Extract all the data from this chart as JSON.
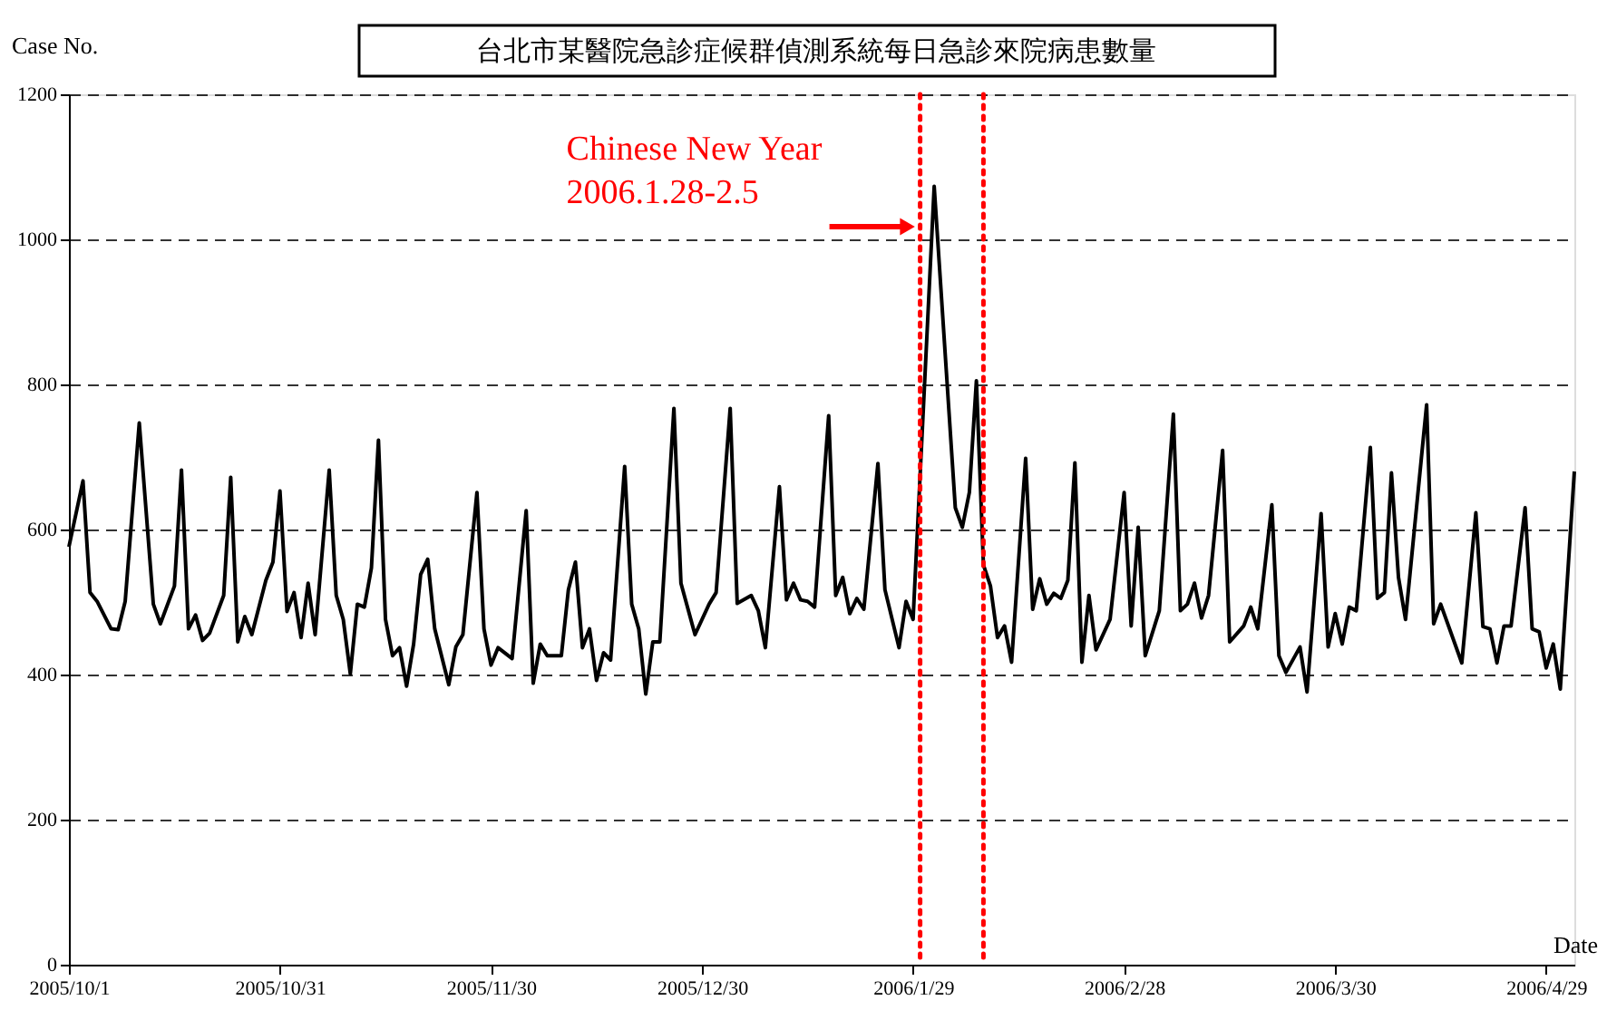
{
  "chart_data": {
    "type": "line",
    "title": "台北市某醫院急診症候群偵測系統每日急診來院病患數量",
    "xlabel": "Date",
    "ylabel": "Case No.",
    "xlim": [
      "2005-10-01",
      "2006-05-03"
    ],
    "xticks": [
      {
        "value": "2005-10-01",
        "label": "2005/10/1"
      },
      {
        "value": "2005-10-31",
        "label": "2005/10/31"
      },
      {
        "value": "2005-11-30",
        "label": "2005/11/30"
      },
      {
        "value": "2005-12-30",
        "label": "2005/12/30"
      },
      {
        "value": "2006-01-29",
        "label": "2006/1/29"
      },
      {
        "value": "2006-02-28",
        "label": "2006/2/28"
      },
      {
        "value": "2006-03-30",
        "label": "2006/3/30"
      },
      {
        "value": "2006-04-29",
        "label": "2006/4/29"
      }
    ],
    "ylim": [
      0,
      1200
    ],
    "yticks": [
      0,
      200,
      400,
      600,
      800,
      1000,
      1200
    ],
    "grid": "y",
    "line_style": "solid",
    "ref_lines": [
      {
        "axis": "x",
        "value": "2006-01-30",
        "color": "#ff0000",
        "line_style": "dotted"
      },
      {
        "axis": "x",
        "value": "2006-02-08",
        "color": "#ff0000",
        "line_style": "dotted"
      }
    ],
    "annotations": [
      "Chinese New Year\n2006.1.28-2.5"
    ],
    "series": [
      {
        "color": "#000000",
        "x": [
          "2005-10-01",
          "2005-10-03",
          "2005-10-04",
          "2005-10-05",
          "2005-10-07",
          "2005-10-08",
          "2005-10-09",
          "2005-10-11",
          "2005-10-13",
          "2005-10-14",
          "2005-10-16",
          "2005-10-17",
          "2005-10-18",
          "2005-10-19",
          "2005-10-20",
          "2005-10-21",
          "2005-10-23",
          "2005-10-24",
          "2005-10-25",
          "2005-10-26",
          "2005-10-27",
          "2005-10-29",
          "2005-10-30",
          "2005-10-31",
          "2005-11-01",
          "2005-11-02",
          "2005-11-03",
          "2005-11-04",
          "2005-11-05",
          "2005-11-07",
          "2005-11-08",
          "2005-11-09",
          "2005-11-10",
          "2005-11-11",
          "2005-11-12",
          "2005-11-13",
          "2005-11-14",
          "2005-11-15",
          "2005-11-16",
          "2005-11-17",
          "2005-11-18",
          "2005-11-19",
          "2005-11-20",
          "2005-11-21",
          "2005-11-22",
          "2005-11-24",
          "2005-11-25",
          "2005-11-26",
          "2005-11-28",
          "2005-11-29",
          "2005-11-30",
          "2005-12-01",
          "2005-12-03",
          "2005-12-05",
          "2005-12-06",
          "2005-12-07",
          "2005-12-08",
          "2005-12-10",
          "2005-12-11",
          "2005-12-12",
          "2005-12-13",
          "2005-12-14",
          "2005-12-15",
          "2005-12-16",
          "2005-12-17",
          "2005-12-19",
          "2005-12-20",
          "2005-12-21",
          "2005-12-22",
          "2005-12-23",
          "2005-12-24",
          "2005-12-26",
          "2005-12-27",
          "2005-12-29",
          "2005-12-31",
          "2006-01-01",
          "2006-01-03",
          "2006-01-04",
          "2006-01-06",
          "2006-01-07",
          "2006-01-08",
          "2006-01-10",
          "2006-01-11",
          "2006-01-12",
          "2006-01-13",
          "2006-01-14",
          "2006-01-15",
          "2006-01-17",
          "2006-01-18",
          "2006-01-19",
          "2006-01-20",
          "2006-01-21",
          "2006-01-22",
          "2006-01-24",
          "2006-01-25",
          "2006-01-27",
          "2006-01-28",
          "2006-01-29",
          "2006-02-01",
          "2006-02-04",
          "2006-02-05",
          "2006-02-06",
          "2006-02-07",
          "2006-02-08",
          "2006-02-09",
          "2006-02-10",
          "2006-02-11",
          "2006-02-12",
          "2006-02-14",
          "2006-02-15",
          "2006-02-16",
          "2006-02-17",
          "2006-02-18",
          "2006-02-19",
          "2006-02-20",
          "2006-02-21",
          "2006-02-22",
          "2006-02-23",
          "2006-02-24",
          "2006-02-26",
          "2006-02-28",
          "2006-03-01",
          "2006-03-02",
          "2006-03-03",
          "2006-03-05",
          "2006-03-07",
          "2006-03-08",
          "2006-03-09",
          "2006-03-10",
          "2006-03-11",
          "2006-03-12",
          "2006-03-14",
          "2006-03-15",
          "2006-03-17",
          "2006-03-18",
          "2006-03-19",
          "2006-03-21",
          "2006-03-22",
          "2006-03-23",
          "2006-03-25",
          "2006-03-26",
          "2006-03-28",
          "2006-03-29",
          "2006-03-30",
          "2006-03-31",
          "2006-04-01",
          "2006-04-02",
          "2006-04-04",
          "2006-04-05",
          "2006-04-06",
          "2006-04-07",
          "2006-04-08",
          "2006-04-09",
          "2006-04-12",
          "2006-04-13",
          "2006-04-14",
          "2006-04-17",
          "2006-04-19",
          "2006-04-20",
          "2006-04-21",
          "2006-04-22",
          "2006-04-23",
          "2006-04-24",
          "2006-04-26",
          "2006-04-27",
          "2006-04-28",
          "2006-04-29",
          "2006-04-30",
          "2006-05-01",
          "2006-05-03"
        ],
        "values": [
          576,
          667,
          513,
          501,
          463,
          462,
          501,
          747,
          497,
          470,
          522,
          682,
          463,
          482,
          447,
          457,
          509,
          672,
          445,
          480,
          455,
          530,
          555,
          653,
          487,
          513,
          451,
          526,
          455,
          682,
          509,
          476,
          401,
          497,
          493,
          547,
          723,
          476,
          426,
          437,
          384,
          442,
          538,
          559,
          463,
          386,
          438,
          455,
          651,
          463,
          413,
          437,
          422,
          626,
          388,
          442,
          426,
          426,
          517,
          555,
          437,
          463,
          392,
          430,
          420,
          687,
          497,
          463,
          373,
          445,
          445,
          767,
          526,
          455,
          497,
          513,
          767,
          498,
          509,
          488,
          437,
          659,
          503,
          526,
          503,
          501,
          493,
          757,
          509,
          534,
          484,
          505,
          490,
          691,
          517,
          437,
          501,
          476,
          1073,
          630,
          603,
          651,
          805,
          551,
          522,
          451,
          467,
          417,
          698,
          490,
          532,
          497,
          512,
          505,
          530,
          692,
          417,
          509,
          434,
          476,
          651,
          467,
          603,
          426,
          488,
          759,
          488,
          497,
          526,
          478,
          509,
          709,
          445,
          467,
          493,
          463,
          634,
          426,
          403,
          438,
          376,
          622,
          438,
          484,
          442,
          493,
          488,
          713,
          505,
          513,
          678,
          534,
          476,
          772,
          470,
          497,
          416,
          623,
          466,
          463,
          416,
          467,
          467,
          630,
          463,
          459,
          409,
          442,
          380,
          680
        ]
      }
    ]
  }
}
